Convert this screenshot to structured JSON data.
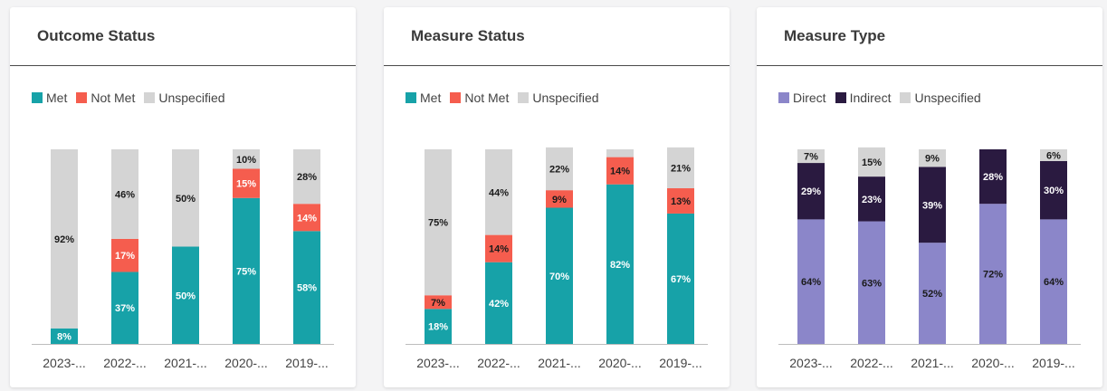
{
  "charts": [
    {
      "title": "Outcome Status",
      "legend": [
        {
          "label": "Met",
          "color": "#17a2a8"
        },
        {
          "label": "Not Met",
          "color": "#f55d4e"
        },
        {
          "label": "Unspecified",
          "color": "#d4d4d4"
        }
      ]
    },
    {
      "title": "Measure Status",
      "legend": [
        {
          "label": "Met",
          "color": "#17a2a8"
        },
        {
          "label": "Not Met",
          "color": "#f55d4e"
        },
        {
          "label": "Unspecified",
          "color": "#d4d4d4"
        }
      ]
    },
    {
      "title": "Measure Type",
      "legend": [
        {
          "label": "Direct",
          "color": "#8b86c9"
        },
        {
          "label": "Indirect",
          "color": "#2a1a40"
        },
        {
          "label": "Unspecified",
          "color": "#d4d4d4"
        }
      ]
    }
  ],
  "chart_data": [
    {
      "type": "bar",
      "stacked": true,
      "title": "Outcome Status",
      "categories": [
        "2023-...",
        "2022-...",
        "2021-...",
        "2020-...",
        "2019-..."
      ],
      "series": [
        {
          "name": "Met",
          "values": [
            8,
            37,
            50,
            75,
            58
          ],
          "labels": [
            "8%",
            "37%",
            "50%",
            "75%",
            "58%"
          ],
          "label_color": "#ffffff"
        },
        {
          "name": "Not Met",
          "values": [
            0,
            17,
            0,
            15,
            14
          ],
          "labels": [
            "",
            "17%",
            "",
            "15%",
            "14%"
          ],
          "label_color": "#ffffff"
        },
        {
          "name": "Unspecified",
          "values": [
            92,
            46,
            50,
            10,
            28
          ],
          "labels": [
            "92%",
            "46%",
            "50%",
            "10%",
            "28%"
          ],
          "label_color": "#1a1a1a"
        }
      ],
      "ylim": [
        0,
        100
      ]
    },
    {
      "type": "bar",
      "stacked": true,
      "title": "Measure Status",
      "categories": [
        "2023-...",
        "2022-...",
        "2021-...",
        "2020-...",
        "2019-..."
      ],
      "series": [
        {
          "name": "Met",
          "values": [
            18,
            42,
            70,
            82,
            67
          ],
          "labels": [
            "18%",
            "42%",
            "70%",
            "82%",
            "67%"
          ],
          "label_color": "#ffffff"
        },
        {
          "name": "Not Met",
          "values": [
            7,
            14,
            9,
            14,
            13
          ],
          "labels": [
            "7%",
            "14%",
            "9%",
            "14%",
            "13%"
          ],
          "label_color": "#1a1a1a"
        },
        {
          "name": "Unspecified",
          "values": [
            75,
            44,
            22,
            4,
            21
          ],
          "labels": [
            "75%",
            "44%",
            "22%",
            "",
            "21%"
          ],
          "label_color": "#1a1a1a"
        }
      ],
      "ylim": [
        0,
        100
      ]
    },
    {
      "type": "bar",
      "stacked": true,
      "title": "Measure Type",
      "categories": [
        "2023-...",
        "2022-...",
        "2021-...",
        "2020-...",
        "2019-..."
      ],
      "series": [
        {
          "name": "Direct",
          "values": [
            64,
            63,
            52,
            72,
            64
          ],
          "labels": [
            "64%",
            "63%",
            "52%",
            "72%",
            "64%"
          ],
          "label_color": "#1a1a1a"
        },
        {
          "name": "Indirect",
          "values": [
            29,
            23,
            39,
            28,
            30
          ],
          "labels": [
            "29%",
            "23%",
            "39%",
            "28%",
            "30%"
          ],
          "label_color": "#ffffff"
        },
        {
          "name": "Unspecified",
          "values": [
            7,
            15,
            9,
            0,
            6
          ],
          "labels": [
            "7%",
            "15%",
            "9%",
            "",
            "6%"
          ],
          "label_color": "#1a1a1a"
        }
      ],
      "ylim": [
        0,
        100
      ]
    }
  ]
}
